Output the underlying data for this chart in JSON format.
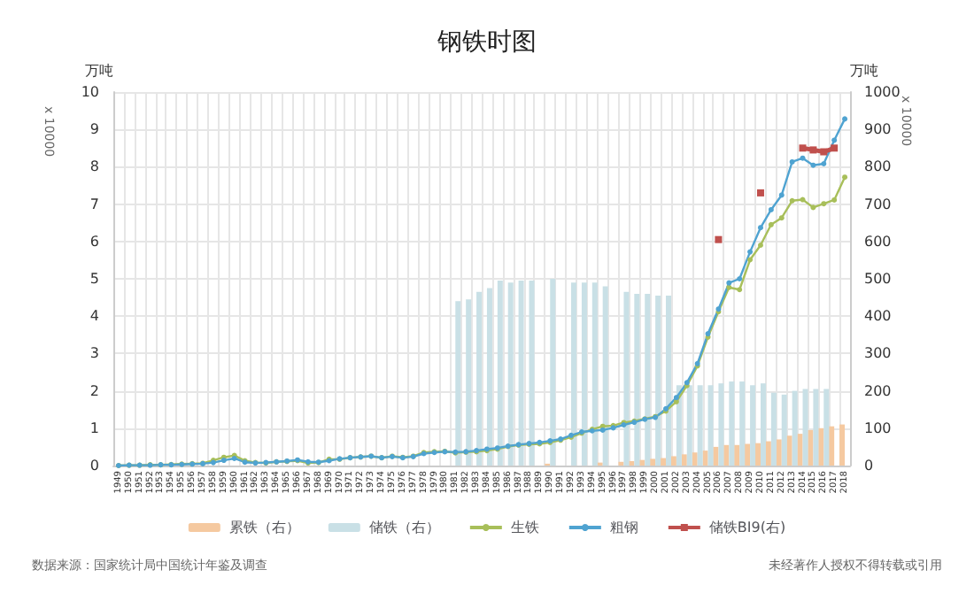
{
  "chart_data": {
    "type": "line",
    "title": "钢铁时图",
    "ylabel": "万吨",
    "y2label": "万吨",
    "annotations": [
      "x 10000",
      "x 10000",
      "数据来源：国家统计局中国统计年鉴及调查",
      "未经著作人授权不得转载或引用"
    ],
    "categories": [
      "1949",
      "1950",
      "1951",
      "1952",
      "1953",
      "1954",
      "1955",
      "1956",
      "1957",
      "1958",
      "1959",
      "1960",
      "1961",
      "1962",
      "1963",
      "1964",
      "1965",
      "1966",
      "1967",
      "1968",
      "1969",
      "1970",
      "1971",
      "1972",
      "1973",
      "1974",
      "1975",
      "1976",
      "1977",
      "1978",
      "1979",
      "1980",
      "1981",
      "1982",
      "1983",
      "1984",
      "1985",
      "1986",
      "1987",
      "1988",
      "1989",
      "1990",
      "1991",
      "1992",
      "1993",
      "1994",
      "1995",
      "1996",
      "1997",
      "1998",
      "1999",
      "2000",
      "2001",
      "2002",
      "2003",
      "2004",
      "2005",
      "2006",
      "2007",
      "2008",
      "2009",
      "2010",
      "2011",
      "2012",
      "2013",
      "2014",
      "2015",
      "2016",
      "2017",
      "2018"
    ],
    "series": [
      {
        "name": "累铁（右）",
        "type": "bar",
        "axis": "y2",
        "color": "#f5c9a0",
        "values": [
          null,
          null,
          null,
          null,
          null,
          null,
          null,
          null,
          null,
          null,
          null,
          null,
          null,
          null,
          null,
          null,
          null,
          null,
          null,
          null,
          null,
          null,
          null,
          null,
          null,
          null,
          null,
          null,
          null,
          null,
          null,
          null,
          null,
          null,
          null,
          null,
          null,
          null,
          null,
          null,
          null,
          5,
          null,
          null,
          null,
          null,
          8,
          null,
          10,
          12,
          15,
          18,
          20,
          25,
          30,
          35,
          40,
          50,
          55,
          55,
          58,
          60,
          65,
          70,
          80,
          85,
          95,
          100,
          105,
          110
        ]
      },
      {
        "name": "储铁（右）",
        "type": "bar",
        "axis": "y2",
        "color": "#c9e0e6",
        "values": [
          null,
          null,
          null,
          null,
          null,
          null,
          null,
          null,
          null,
          null,
          null,
          null,
          null,
          null,
          null,
          null,
          null,
          null,
          null,
          null,
          null,
          null,
          null,
          null,
          null,
          null,
          null,
          null,
          null,
          null,
          null,
          null,
          440,
          445,
          465,
          475,
          495,
          490,
          495,
          495,
          null,
          500,
          null,
          490,
          490,
          490,
          480,
          null,
          465,
          460,
          460,
          455,
          455,
          215,
          215,
          215,
          215,
          220,
          225,
          225,
          215,
          220,
          195,
          190,
          200,
          205,
          205,
          205,
          null,
          null
        ]
      },
      {
        "name": "生铁",
        "color": "#a8bf5a",
        "marker": "circle",
        "values": [
          0.0,
          0.01,
          0.01,
          0.02,
          0.02,
          0.03,
          0.04,
          0.05,
          0.06,
          0.14,
          0.22,
          0.27,
          0.13,
          0.08,
          0.07,
          0.1,
          0.11,
          0.13,
          0.07,
          0.08,
          0.17,
          0.17,
          0.21,
          0.23,
          0.25,
          0.21,
          0.25,
          0.22,
          0.25,
          0.35,
          0.37,
          0.38,
          0.34,
          0.36,
          0.37,
          0.4,
          0.44,
          0.51,
          0.55,
          0.57,
          0.58,
          0.62,
          0.68,
          0.76,
          0.87,
          0.97,
          1.05,
          1.07,
          1.15,
          1.19,
          1.25,
          1.31,
          1.46,
          1.71,
          2.14,
          2.67,
          3.44,
          4.12,
          4.77,
          4.71,
          5.51,
          5.9,
          6.45,
          6.63,
          7.09,
          7.12,
          6.91,
          7.01,
          7.11,
          7.72
        ]
      },
      {
        "name": "粗钢",
        "color": "#4fa3d1",
        "marker": "circle",
        "values": [
          0.0,
          0.01,
          0.01,
          0.01,
          0.02,
          0.02,
          0.03,
          0.04,
          0.05,
          0.08,
          0.14,
          0.19,
          0.09,
          0.07,
          0.08,
          0.1,
          0.12,
          0.15,
          0.1,
          0.09,
          0.13,
          0.18,
          0.21,
          0.23,
          0.25,
          0.21,
          0.24,
          0.21,
          0.24,
          0.32,
          0.35,
          0.37,
          0.36,
          0.37,
          0.4,
          0.44,
          0.47,
          0.52,
          0.56,
          0.59,
          0.62,
          0.66,
          0.71,
          0.81,
          0.9,
          0.93,
          0.95,
          1.01,
          1.09,
          1.16,
          1.24,
          1.29,
          1.52,
          1.82,
          2.22,
          2.73,
          3.53,
          4.19,
          4.89,
          5.0,
          5.72,
          6.37,
          6.85,
          7.24,
          8.13,
          8.23,
          8.04,
          8.08,
          8.71,
          9.28
        ]
      },
      {
        "name": "储铁BI9(右)",
        "axis": "y2",
        "color": "#c0504d",
        "marker": "square",
        "values": [
          null,
          null,
          null,
          null,
          null,
          null,
          null,
          null,
          null,
          null,
          null,
          null,
          null,
          null,
          null,
          null,
          null,
          null,
          null,
          null,
          null,
          null,
          null,
          null,
          null,
          null,
          null,
          null,
          null,
          null,
          null,
          null,
          null,
          null,
          null,
          null,
          null,
          null,
          null,
          null,
          null,
          null,
          null,
          null,
          null,
          null,
          null,
          null,
          null,
          null,
          null,
          null,
          null,
          null,
          null,
          null,
          null,
          605,
          null,
          null,
          null,
          730,
          null,
          null,
          null,
          850,
          845,
          840,
          850,
          null
        ]
      }
    ],
    "ylim": [
      0,
      10
    ],
    "yticks": [
      0,
      1,
      2,
      3,
      4,
      5,
      6,
      7,
      8,
      9,
      10
    ],
    "y2lim": [
      0,
      1000
    ],
    "y2ticks": [
      0,
      100,
      200,
      300,
      400,
      500,
      600,
      700,
      800,
      900,
      1000
    ],
    "grid": true,
    "legend": "bottom"
  }
}
